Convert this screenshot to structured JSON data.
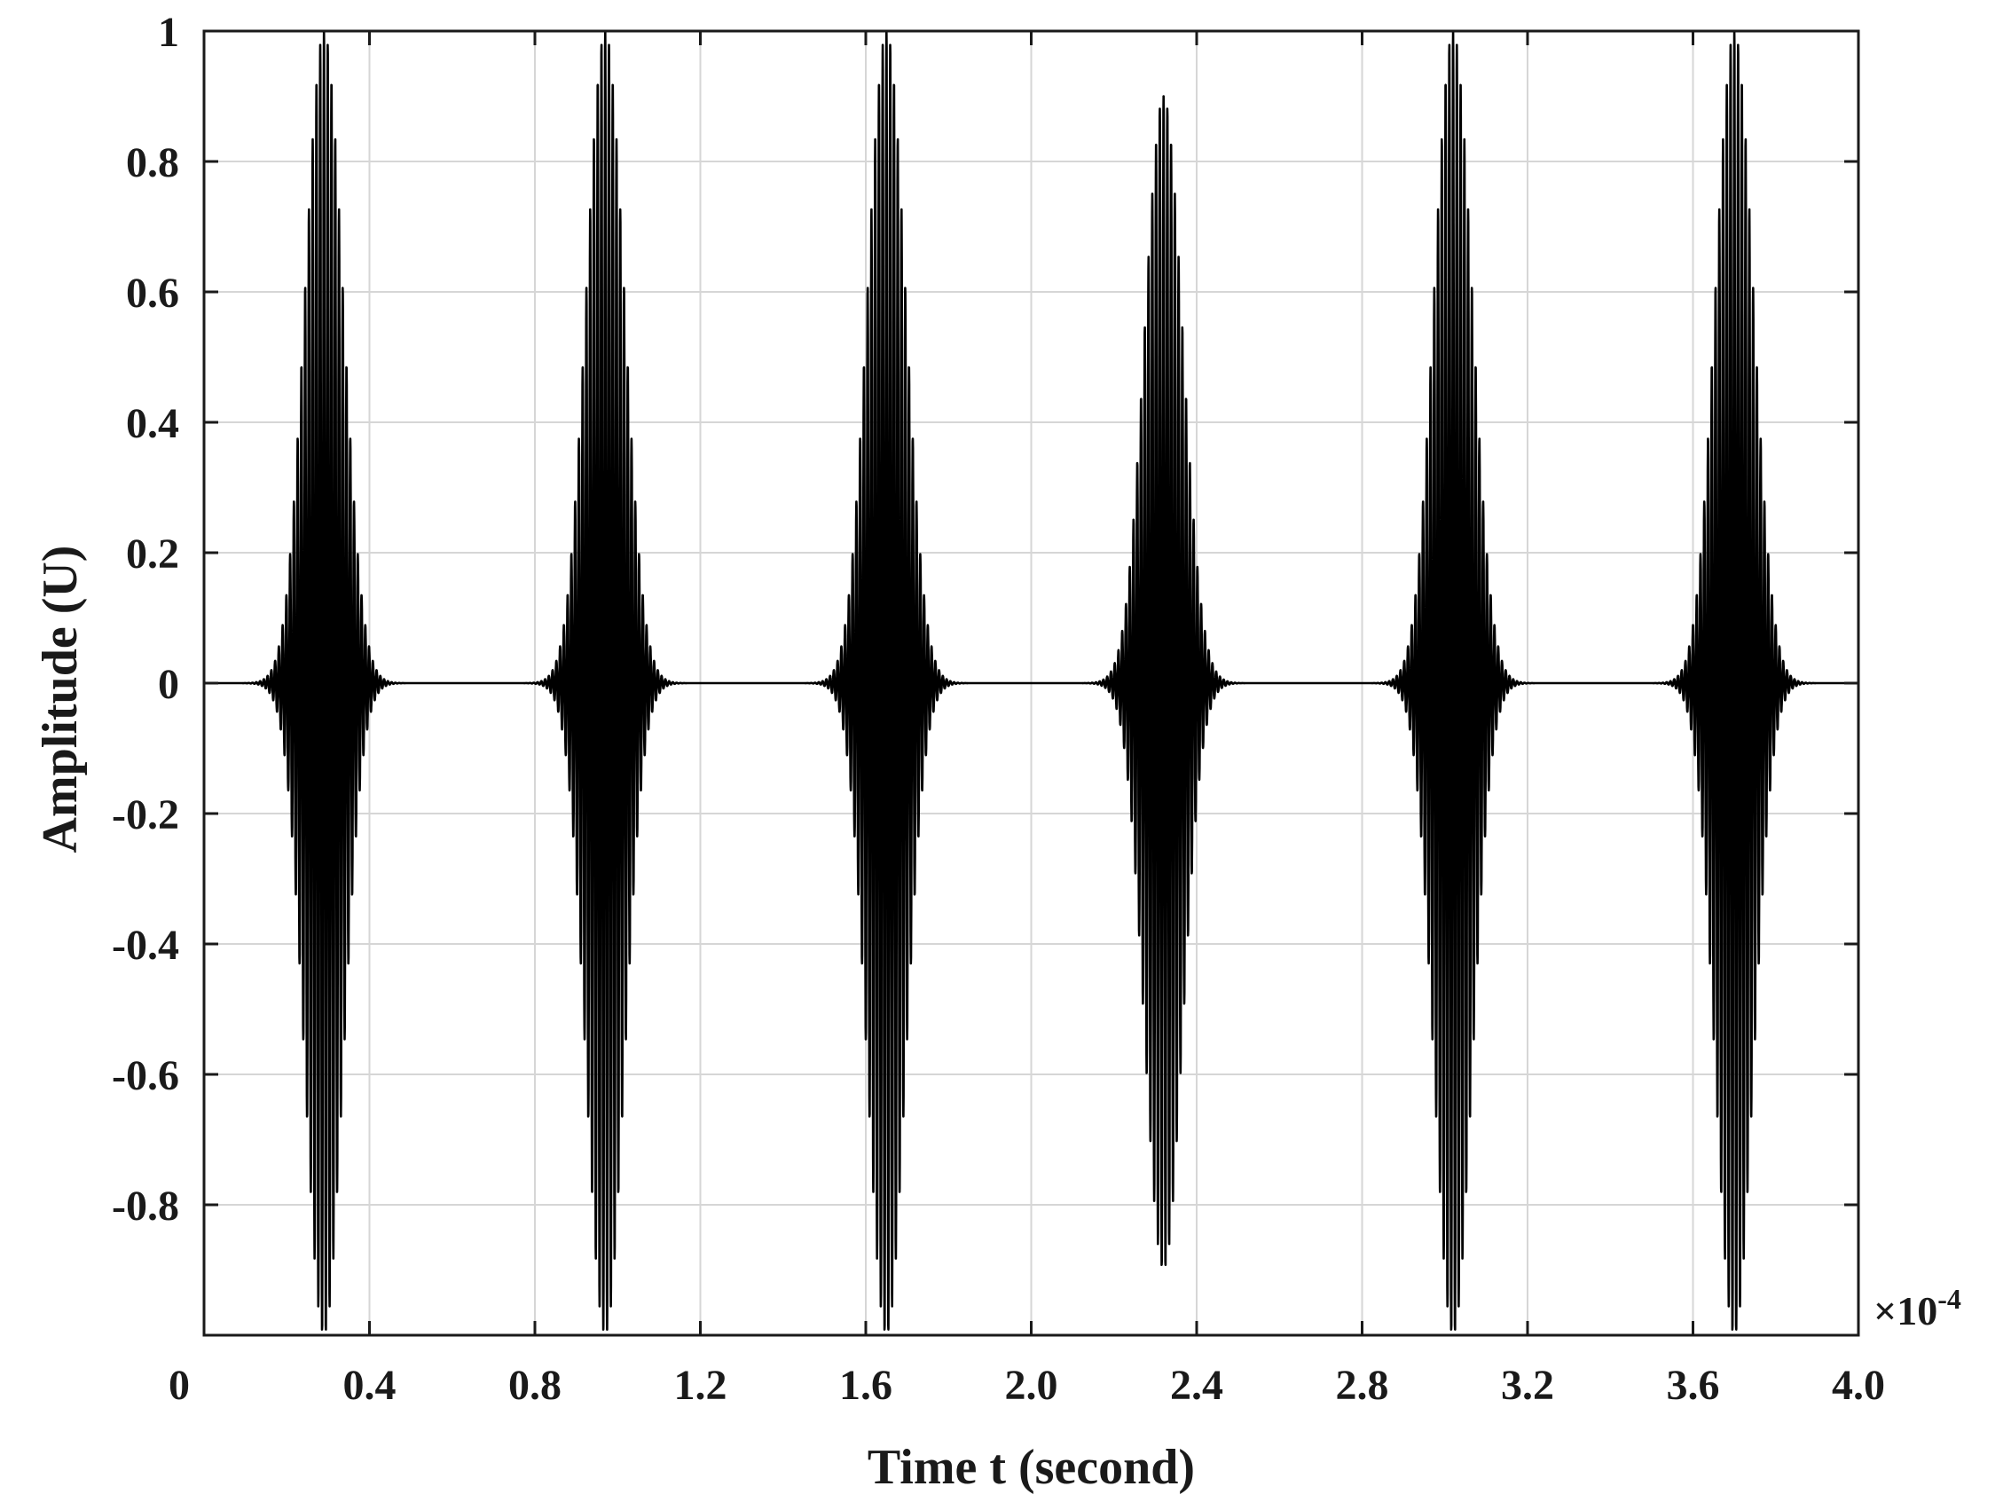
{
  "chart_data": {
    "type": "line",
    "title": "",
    "xlabel": "Time t (second)",
    "ylabel": "Amplitude (U)",
    "x_exponent_label": "×10",
    "x_exponent_power": "-4",
    "xlim": [
      0,
      4.0
    ],
    "ylim": [
      -1,
      1
    ],
    "x_ticks": [
      0,
      0.4,
      0.8,
      1.2,
      1.6,
      2.0,
      2.4,
      2.8,
      3.2,
      3.6,
      4.0
    ],
    "x_tick_labels": [
      "0",
      "0.4",
      "0.8",
      "1.2",
      "1.6",
      "2.0",
      "2.4",
      "2.8",
      "3.2",
      "3.6",
      "4.0"
    ],
    "y_ticks": [
      -0.8,
      -0.6,
      -0.4,
      -0.2,
      0,
      0.2,
      0.4,
      0.6,
      0.8,
      1
    ],
    "y_tick_labels": [
      "-0.8",
      "-0.6",
      "-0.4",
      "-0.2",
      "0",
      "0.2",
      "0.4",
      "0.6",
      "0.8",
      "1"
    ],
    "grid": true,
    "series": [
      {
        "style": "Gaussian-windowed tone bursts",
        "color": "#000000",
        "burst_centers": [
          0.29,
          0.97,
          1.65,
          2.32,
          3.02,
          3.7
        ],
        "burst_peak_amplitude": [
          1.0,
          1.0,
          1.0,
          0.9,
          1.0,
          1.0
        ],
        "burst_half_width": 0.1,
        "carrier_frequency": 110,
        "baseline_amplitude": 0.0
      }
    ]
  }
}
